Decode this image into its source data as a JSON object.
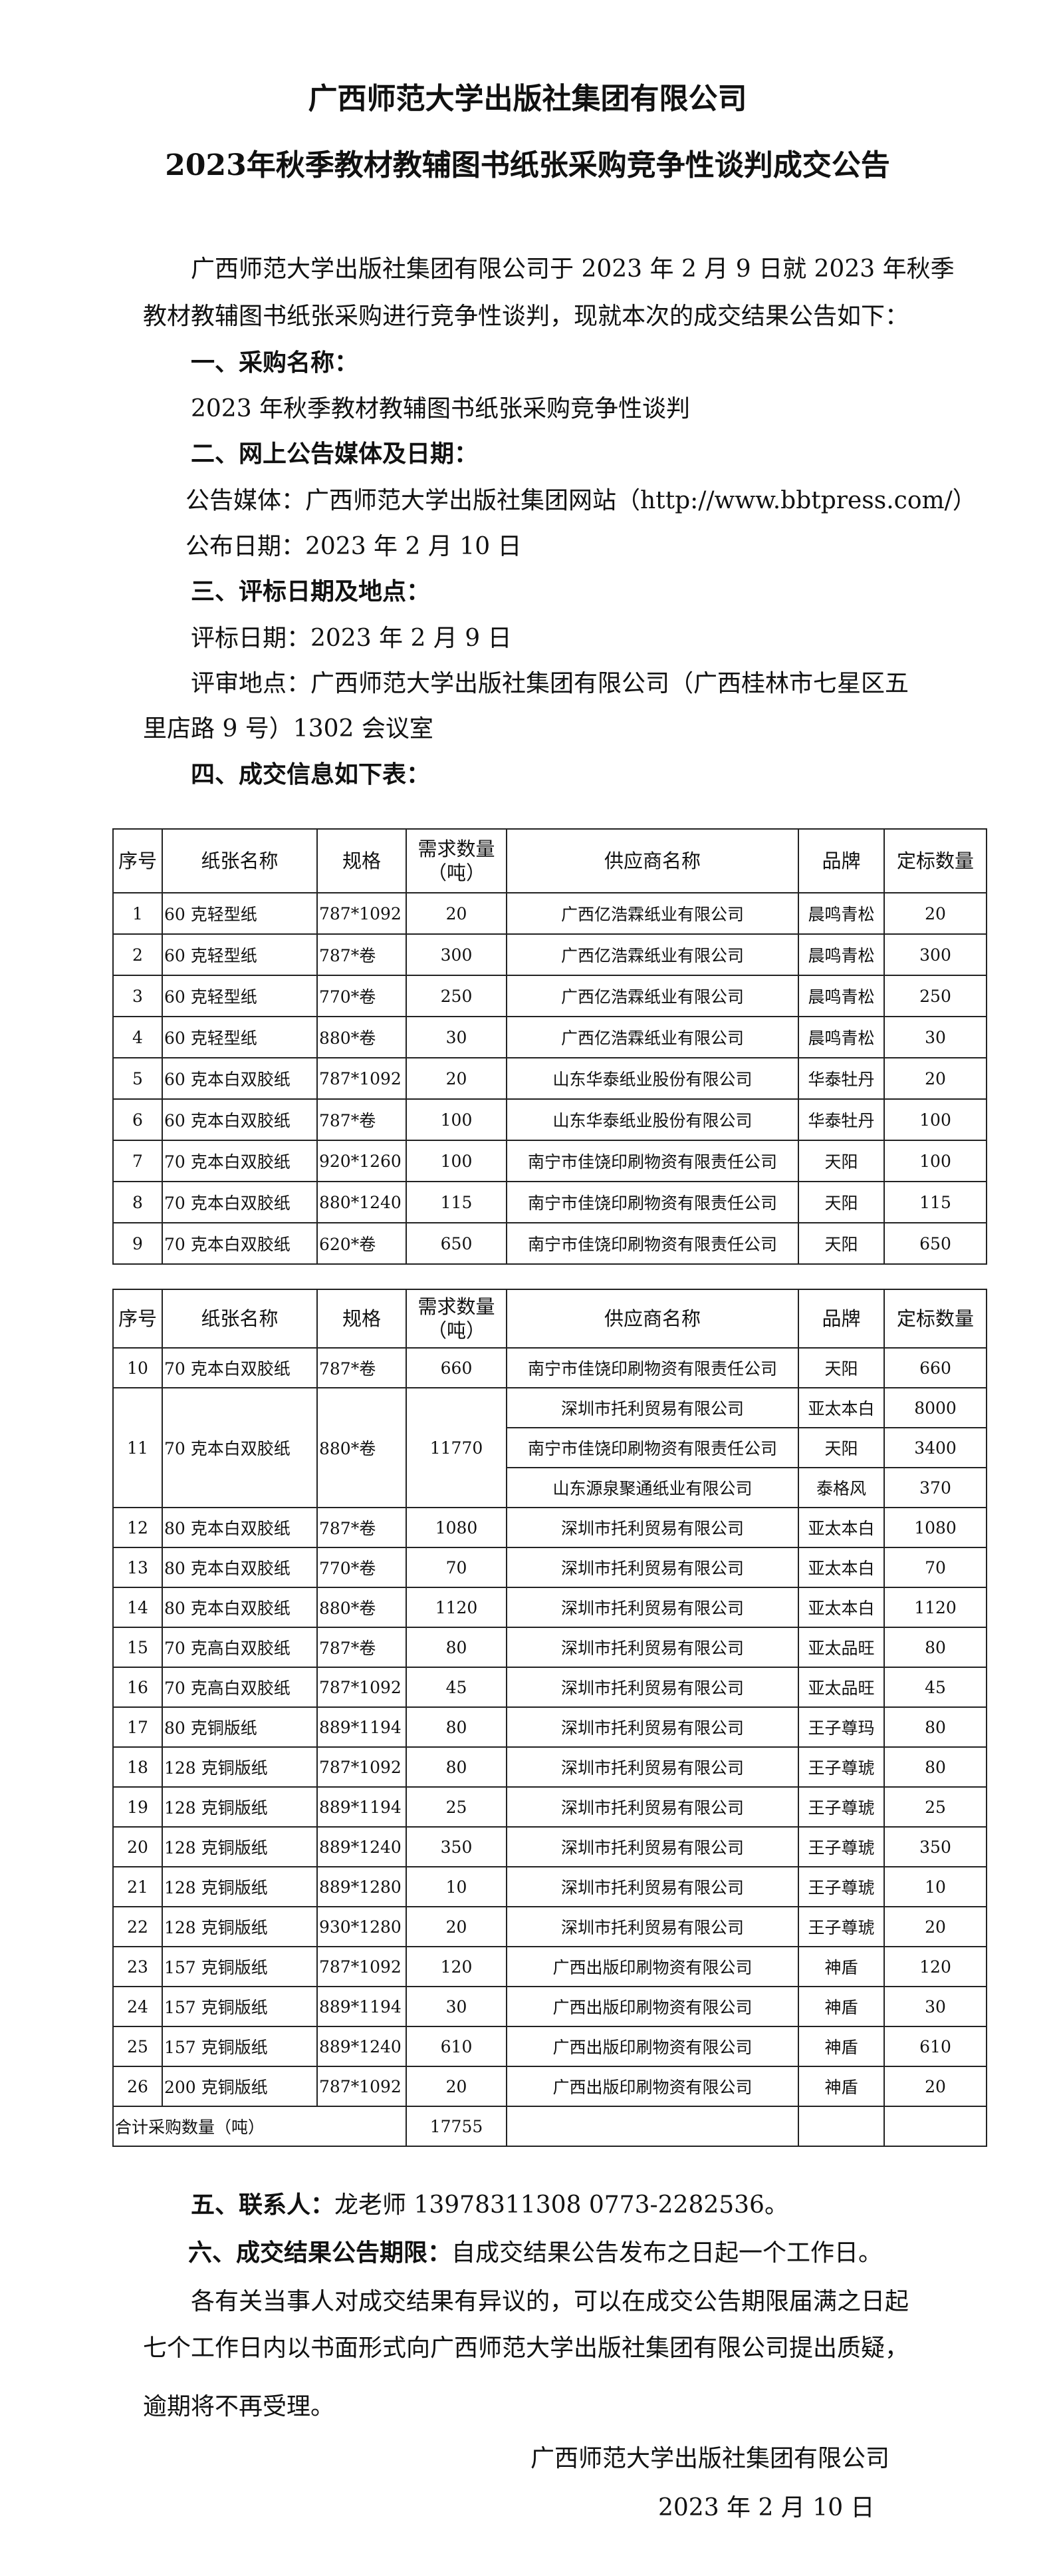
{
  "title": {
    "line1": "广西师范大学出版社集团有限公司",
    "line2": "2023年秋季教材教辅图书纸张采购竞争性谈判成交公告"
  },
  "intro": {
    "line1": "广西师范大学出版社集团有限公司于 2023 年 2 月 9 日就 2023 年秋季",
    "line2": "教材教辅图书纸张采购进行竞争性谈判，现就本次的成交结果公告如下："
  },
  "sections": {
    "s1_heading": "一、采购名称：",
    "s1_text": "2023 年秋季教材教辅图书纸张采购竞争性谈判",
    "s2_heading": "二、网上公告媒体及日期：",
    "s2_media": "公告媒体：广西师范大学出版社集团网站（http://www.bbtpress.com/）",
    "s2_date": "公布日期：2023 年 2 月 10 日",
    "s3_heading": "三、评标日期及地点：",
    "s3_date": "评标日期：2023 年 2 月 9 日",
    "s3_place_line1": "评审地点：广西师范大学出版社集团有限公司（广西桂林市七星区五",
    "s3_place_line2": "里店路 9 号）1302 会议室",
    "s4_heading": "四、成交信息如下表：",
    "s5_heading": "五、联系人：",
    "s5_text": "龙老师 13978311308  0773-2282536。",
    "s6_heading": "六、成交结果公告期限：",
    "s6_text": "自成交结果公告发布之日起一个工作日。",
    "objection_line1": "各有关当事人对成交结果有异议的，可以在成交公告期限届满之日起",
    "objection_line2": "七个工作日内以书面形式向广西师范大学出版社集团有限公司提出质疑，",
    "objection_line3": "逾期将不再受理。"
  },
  "signature": {
    "org": "广西师范大学出版社集团有限公司",
    "date": "2023 年 2 月 10 日"
  },
  "table": {
    "headers": [
      "序号",
      "纸张名称",
      "规格",
      "需求数量（吨）",
      "供应商名称",
      "品牌",
      "定标数量"
    ],
    "part1": [
      {
        "no": "1",
        "name": "60 克轻型纸",
        "spec": "787*1092",
        "demand": "20",
        "supplier": "广西亿浩霖纸业有限公司",
        "brand": "晨鸣青松",
        "qty": "20"
      },
      {
        "no": "2",
        "name": "60 克轻型纸",
        "spec": "787*卷",
        "demand": "300",
        "supplier": "广西亿浩霖纸业有限公司",
        "brand": "晨鸣青松",
        "qty": "300"
      },
      {
        "no": "3",
        "name": "60 克轻型纸",
        "spec": "770*卷",
        "demand": "250",
        "supplier": "广西亿浩霖纸业有限公司",
        "brand": "晨鸣青松",
        "qty": "250"
      },
      {
        "no": "4",
        "name": "60 克轻型纸",
        "spec": "880*卷",
        "demand": "30",
        "supplier": "广西亿浩霖纸业有限公司",
        "brand": "晨鸣青松",
        "qty": "30"
      },
      {
        "no": "5",
        "name": "60 克本白双胶纸",
        "spec": "787*1092",
        "demand": "20",
        "supplier": "山东华泰纸业股份有限公司",
        "brand": "华泰牡丹",
        "qty": "20"
      },
      {
        "no": "6",
        "name": "60 克本白双胶纸",
        "spec": "787*卷",
        "demand": "100",
        "supplier": "山东华泰纸业股份有限公司",
        "brand": "华泰牡丹",
        "qty": "100"
      },
      {
        "no": "7",
        "name": "70 克本白双胶纸",
        "spec": "920*1260",
        "demand": "100",
        "supplier": "南宁市佳饶印刷物资有限责任公司",
        "brand": "天阳",
        "qty": "100"
      },
      {
        "no": "8",
        "name": "70 克本白双胶纸",
        "spec": "880*1240",
        "demand": "115",
        "supplier": "南宁市佳饶印刷物资有限责任公司",
        "brand": "天阳",
        "qty": "115"
      },
      {
        "no": "9",
        "name": "70 克本白双胶纸",
        "spec": "620*卷",
        "demand": "650",
        "supplier": "南宁市佳饶印刷物资有限责任公司",
        "brand": "天阳",
        "qty": "650"
      }
    ],
    "part2": [
      {
        "no": "10",
        "name": "70 克本白双胶纸",
        "spec": "787*卷",
        "demand": "660",
        "lines": [
          {
            "supplier": "南宁市佳饶印刷物资有限责任公司",
            "brand": "天阳",
            "qty": "660"
          }
        ]
      },
      {
        "no": "11",
        "name": "70 克本白双胶纸",
        "spec": "880*卷",
        "demand": "11770",
        "lines": [
          {
            "supplier": "深圳市托利贸易有限公司",
            "brand": "亚太本白",
            "qty": "8000"
          },
          {
            "supplier": "南宁市佳饶印刷物资有限责任公司",
            "brand": "天阳",
            "qty": "3400"
          },
          {
            "supplier": "山东源泉聚通纸业有限公司",
            "brand": "泰格风",
            "qty": "370"
          }
        ]
      },
      {
        "no": "12",
        "name": "80 克本白双胶纸",
        "spec": "787*卷",
        "demand": "1080",
        "lines": [
          {
            "supplier": "深圳市托利贸易有限公司",
            "brand": "亚太本白",
            "qty": "1080"
          }
        ]
      },
      {
        "no": "13",
        "name": "80 克本白双胶纸",
        "spec": "770*卷",
        "demand": "70",
        "lines": [
          {
            "supplier": "深圳市托利贸易有限公司",
            "brand": "亚太本白",
            "qty": "70"
          }
        ]
      },
      {
        "no": "14",
        "name": "80 克本白双胶纸",
        "spec": "880*卷",
        "demand": "1120",
        "lines": [
          {
            "supplier": "深圳市托利贸易有限公司",
            "brand": "亚太本白",
            "qty": "1120"
          }
        ]
      },
      {
        "no": "15",
        "name": "70 克高白双胶纸",
        "spec": "787*卷",
        "demand": "80",
        "lines": [
          {
            "supplier": "深圳市托利贸易有限公司",
            "brand": "亚太品旺",
            "qty": "80"
          }
        ]
      },
      {
        "no": "16",
        "name": "70 克高白双胶纸",
        "spec": "787*1092",
        "demand": "45",
        "lines": [
          {
            "supplier": "深圳市托利贸易有限公司",
            "brand": "亚太品旺",
            "qty": "45"
          }
        ]
      },
      {
        "no": "17",
        "name": "80 克铜版纸",
        "spec": "889*1194",
        "demand": "80",
        "lines": [
          {
            "supplier": "深圳市托利贸易有限公司",
            "brand": "王子尊玛",
            "qty": "80"
          }
        ]
      },
      {
        "no": "18",
        "name": "128 克铜版纸",
        "spec": "787*1092",
        "demand": "80",
        "lines": [
          {
            "supplier": "深圳市托利贸易有限公司",
            "brand": "王子尊琥",
            "qty": "80"
          }
        ]
      },
      {
        "no": "19",
        "name": "128 克铜版纸",
        "spec": "889*1194",
        "demand": "25",
        "lines": [
          {
            "supplier": "深圳市托利贸易有限公司",
            "brand": "王子尊琥",
            "qty": "25"
          }
        ]
      },
      {
        "no": "20",
        "name": "128 克铜版纸",
        "spec": "889*1240",
        "demand": "350",
        "lines": [
          {
            "supplier": "深圳市托利贸易有限公司",
            "brand": "王子尊琥",
            "qty": "350"
          }
        ]
      },
      {
        "no": "21",
        "name": "128 克铜版纸",
        "spec": "889*1280",
        "demand": "10",
        "lines": [
          {
            "supplier": "深圳市托利贸易有限公司",
            "brand": "王子尊琥",
            "qty": "10"
          }
        ]
      },
      {
        "no": "22",
        "name": "128 克铜版纸",
        "spec": "930*1280",
        "demand": "20",
        "lines": [
          {
            "supplier": "深圳市托利贸易有限公司",
            "brand": "王子尊琥",
            "qty": "20"
          }
        ]
      },
      {
        "no": "23",
        "name": "157 克铜版纸",
        "spec": "787*1092",
        "demand": "120",
        "lines": [
          {
            "supplier": "广西出版印刷物资有限公司",
            "brand": "神盾",
            "qty": "120"
          }
        ]
      },
      {
        "no": "24",
        "name": "157 克铜版纸",
        "spec": "889*1194",
        "demand": "30",
        "lines": [
          {
            "supplier": "广西出版印刷物资有限公司",
            "brand": "神盾",
            "qty": "30"
          }
        ]
      },
      {
        "no": "25",
        "name": "157 克铜版纸",
        "spec": "889*1240",
        "demand": "610",
        "lines": [
          {
            "supplier": "广西出版印刷物资有限公司",
            "brand": "神盾",
            "qty": "610"
          }
        ]
      },
      {
        "no": "26",
        "name": "200 克铜版纸",
        "spec": "787*1092",
        "demand": "20",
        "lines": [
          {
            "supplier": "广西出版印刷物资有限公司",
            "brand": "神盾",
            "qty": "20"
          }
        ]
      }
    ],
    "total_label": "合计采购数量（吨）",
    "total_value": "17755"
  }
}
